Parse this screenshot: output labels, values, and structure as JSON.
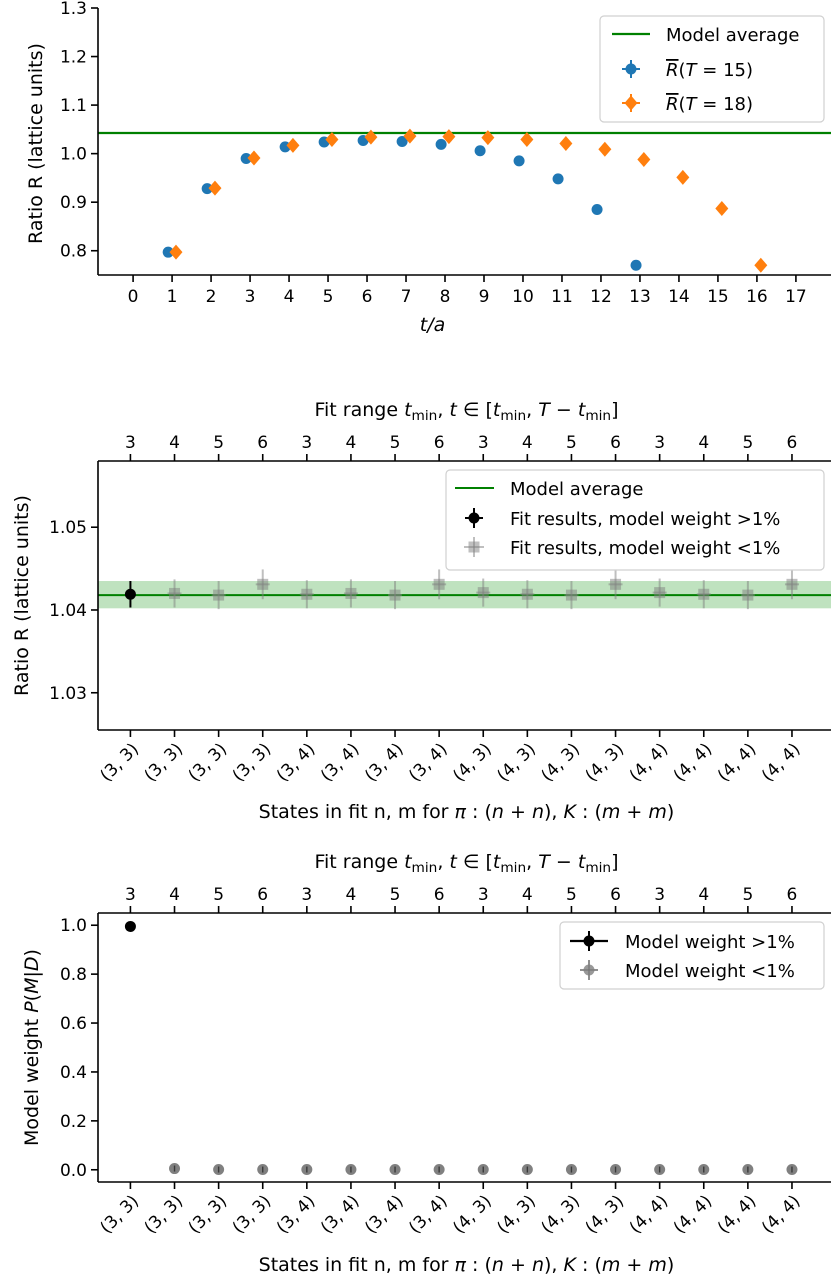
{
  "chart_data": [
    {
      "type": "scatter",
      "xlabel": "t/a",
      "ylabel": "Ratio R (lattice units)",
      "xlim": [
        -0.9,
        17.9
      ],
      "ylim": [
        0.75,
        1.3
      ],
      "x_ticks": [
        0,
        1,
        2,
        3,
        4,
        5,
        6,
        7,
        8,
        9,
        10,
        11,
        12,
        13,
        14,
        15,
        16,
        17
      ],
      "y_ticks": [
        0.8,
        0.9,
        1.0,
        1.1,
        1.2,
        1.3
      ],
      "y_tick_labels": [
        "0.8",
        "0.9",
        "1.0",
        "1.1",
        "1.2",
        "1.3"
      ],
      "legend_position": "top-right",
      "model_average": 1.0425,
      "series": [
        {
          "name": "R̄(T = 15)",
          "label_base": "R",
          "label_arg": "(T = 15)",
          "color": "#1f77b4",
          "marker": "circle",
          "x": [
            1,
            2,
            3,
            4,
            5,
            6,
            7,
            8,
            9,
            10,
            11,
            12,
            13
          ],
          "y": [
            0.797,
            0.928,
            0.99,
            1.014,
            1.024,
            1.027,
            1.025,
            1.019,
            1.006,
            0.985,
            0.948,
            0.885,
            0.77
          ]
        },
        {
          "name": "R̄(T = 18)",
          "label_base": "R",
          "label_arg": "(T = 18)",
          "color": "#ff7f0e",
          "marker": "diamond",
          "x": [
            1,
            2,
            3,
            4,
            5,
            6,
            7,
            8,
            9,
            10,
            11,
            12,
            13,
            14,
            15,
            16
          ],
          "y": [
            0.797,
            0.929,
            0.991,
            1.017,
            1.029,
            1.034,
            1.036,
            1.035,
            1.033,
            1.029,
            1.021,
            1.009,
            0.988,
            0.951,
            0.887,
            0.77
          ]
        }
      ],
      "legend": {
        "model_average_label": "Model average"
      }
    },
    {
      "type": "scatter",
      "ylabel": "Ratio R (lattice units)",
      "xlabel": "States in fit n, m for π : (n + n), K : (m + m)",
      "top_xlabel": "Fit range t_min, t ∈ [t_min, T − t_min]",
      "categories": [
        "(3, 3)",
        "(3, 3)",
        "(3, 3)",
        "(3, 3)",
        "(3, 4)",
        "(3, 4)",
        "(3, 4)",
        "(3, 4)",
        "(4, 3)",
        "(4, 3)",
        "(4, 3)",
        "(4, 3)",
        "(4, 4)",
        "(4, 4)",
        "(4, 4)",
        "(4, 4)"
      ],
      "top_categories": [
        "3",
        "4",
        "5",
        "6",
        "3",
        "4",
        "5",
        "6",
        "3",
        "4",
        "5",
        "6",
        "3",
        "4",
        "5",
        "6"
      ],
      "ylim": [
        1.0255,
        1.058
      ],
      "y_ticks": [
        1.03,
        1.04,
        1.05
      ],
      "y_tick_labels": [
        "1.03",
        "1.04",
        "1.05"
      ],
      "legend_position": "top-right",
      "model_average": 1.0418,
      "model_band": [
        1.0402,
        1.0435
      ],
      "values": [
        1.0419,
        1.042,
        1.0418,
        1.0431,
        1.0419,
        1.042,
        1.0418,
        1.0431,
        1.0421,
        1.0419,
        1.0418,
        1.0431,
        1.0421,
        1.0419,
        1.0418,
        1.0431
      ],
      "errors": [
        0.0016,
        0.0017,
        0.0017,
        0.0018,
        0.0017,
        0.0017,
        0.0017,
        0.0018,
        0.0017,
        0.0017,
        0.0017,
        0.0018,
        0.0017,
        0.0017,
        0.0017,
        0.0018
      ],
      "high_weight": [
        true,
        false,
        false,
        false,
        false,
        false,
        false,
        false,
        false,
        false,
        false,
        false,
        false,
        false,
        false,
        false
      ],
      "legend": {
        "model_average_label": "Model average",
        "high_label": "Fit results, model weight >1%",
        "low_label": "Fit results, model weight <1%"
      }
    },
    {
      "type": "scatter",
      "ylabel": "Model weight P(M|D)",
      "xlabel": "States in fit n, m for π : (n + n), K : (m + m)",
      "top_xlabel": "Fit range t_min, t ∈ [t_min, T − t_min]",
      "categories": [
        "(3, 3)",
        "(3, 3)",
        "(3, 3)",
        "(3, 3)",
        "(3, 4)",
        "(3, 4)",
        "(3, 4)",
        "(3, 4)",
        "(4, 3)",
        "(4, 3)",
        "(4, 3)",
        "(4, 3)",
        "(4, 4)",
        "(4, 4)",
        "(4, 4)",
        "(4, 4)"
      ],
      "top_categories": [
        "3",
        "4",
        "5",
        "6",
        "3",
        "4",
        "5",
        "6",
        "3",
        "4",
        "5",
        "6",
        "3",
        "4",
        "5",
        "6"
      ],
      "ylim": [
        -0.05,
        1.05
      ],
      "y_ticks": [
        0.0,
        0.2,
        0.4,
        0.6,
        0.8,
        1.0
      ],
      "y_tick_labels": [
        "0.0",
        "0.2",
        "0.4",
        "0.6",
        "0.8",
        "1.0"
      ],
      "legend_position": "top-right",
      "values": [
        0.995,
        0.005,
        0.001,
        0.001,
        0.001,
        0.001,
        0.001,
        0.001,
        0.001,
        0.001,
        0.001,
        0.001,
        0.001,
        0.001,
        0.001,
        0.001
      ],
      "high_weight": [
        true,
        false,
        false,
        false,
        false,
        false,
        false,
        false,
        false,
        false,
        false,
        false,
        false,
        false,
        false,
        false
      ],
      "legend": {
        "high_label": "Model weight >1%",
        "low_label": "Model weight <1%"
      }
    }
  ],
  "colors": {
    "model_average": "#008000",
    "band": "#a9d8a9",
    "high_weight": "#000000",
    "low_weight": "#808080"
  }
}
